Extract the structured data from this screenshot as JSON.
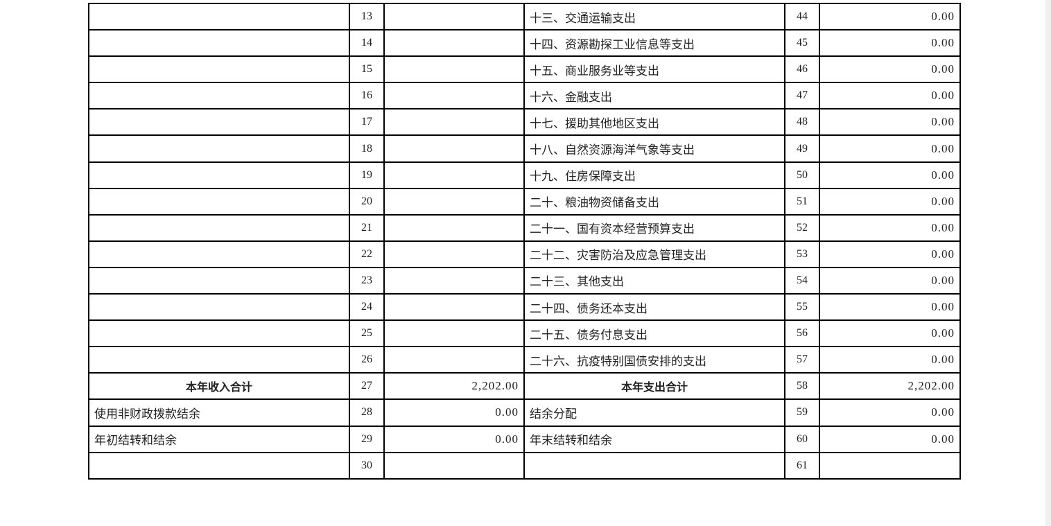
{
  "table": {
    "rows": [
      [
        "",
        "13",
        "",
        "十三、交通运输支出",
        "44",
        "0.00"
      ],
      [
        "",
        "14",
        "",
        "十四、资源勘探工业信息等支出",
        "45",
        "0.00"
      ],
      [
        "",
        "15",
        "",
        "十五、商业服务业等支出",
        "46",
        "0.00"
      ],
      [
        "",
        "16",
        "",
        "十六、金融支出",
        "47",
        "0.00"
      ],
      [
        "",
        "17",
        "",
        "十七、援助其他地区支出",
        "48",
        "0.00"
      ],
      [
        "",
        "18",
        "",
        "十八、自然资源海洋气象等支出",
        "49",
        "0.00"
      ],
      [
        "",
        "19",
        "",
        "十九、住房保障支出",
        "50",
        "0.00"
      ],
      [
        "",
        "20",
        "",
        "二十、粮油物资储备支出",
        "51",
        "0.00"
      ],
      [
        "",
        "21",
        "",
        "二十一、国有资本经营预算支出",
        "52",
        "0.00"
      ],
      [
        "",
        "22",
        "",
        "二十二、灾害防治及应急管理支出",
        "53",
        "0.00"
      ],
      [
        "",
        "23",
        "",
        "二十三、其他支出",
        "54",
        "0.00"
      ],
      [
        "",
        "24",
        "",
        "二十四、债务还本支出",
        "55",
        "0.00"
      ],
      [
        "",
        "25",
        "",
        "二十五、债务付息支出",
        "56",
        "0.00"
      ],
      [
        "",
        "26",
        "",
        "二十六、抗疫特别国债安排的支出",
        "57",
        "0.00"
      ],
      [
        "本年收入合计",
        "27",
        "2,202.00",
        "本年支出合计",
        "58",
        "2,202.00"
      ],
      [
        "使用非财政拨款结余",
        "28",
        "0.00",
        "结余分配",
        "59",
        "0.00"
      ],
      [
        "年初结转和结余",
        "29",
        "0.00",
        "年末结转和结余",
        "60",
        "0.00"
      ],
      [
        "",
        "30",
        "",
        "",
        "61",
        ""
      ]
    ]
  }
}
